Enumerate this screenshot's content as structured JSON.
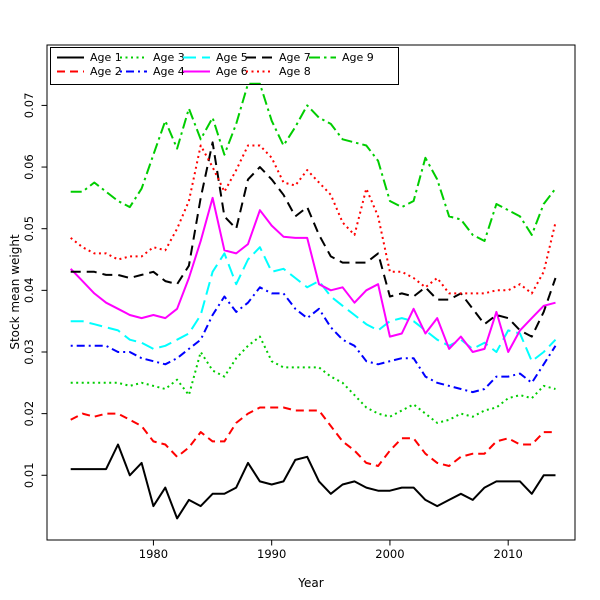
{
  "figure": {
    "background": "#ffffff",
    "axis_color": "#000000",
    "text_color": "#000000"
  },
  "chart_data": {
    "type": "line",
    "title": "",
    "xlabel": "Year",
    "ylabel": "Stock mean weight",
    "grid": false,
    "legend_position": "top-left-inside",
    "legend_columns": 5,
    "legend_border": true,
    "x_ticks": [
      1980,
      1990,
      2000,
      2010
    ],
    "y_ticks": [
      0.01,
      0.02,
      0.03,
      0.04,
      0.05,
      0.06,
      0.07
    ],
    "xlim": [
      1971.0,
      2015.65
    ],
    "ylim": [
      -0.0005,
      0.0798
    ],
    "x": [
      1973,
      1974,
      1975,
      1976,
      1977,
      1978,
      1979,
      1980,
      1981,
      1982,
      1983,
      1984,
      1985,
      1986,
      1987,
      1988,
      1989,
      1990,
      1991,
      1992,
      1993,
      1994,
      1995,
      1996,
      1997,
      1998,
      1999,
      2000,
      2001,
      2002,
      2003,
      2004,
      2005,
      2006,
      2007,
      2008,
      2009,
      2010,
      2011,
      2012,
      2013,
      2014
    ],
    "series": [
      {
        "name": "Age 1",
        "color": "#000000",
        "style": "solid",
        "values": [
          0.011,
          0.011,
          0.011,
          0.011,
          0.015,
          0.01,
          0.012,
          0.005,
          0.008,
          0.003,
          0.006,
          0.005,
          0.007,
          0.007,
          0.008,
          0.012,
          0.009,
          0.0085,
          0.009,
          0.0125,
          0.013,
          0.009,
          0.007,
          0.0085,
          0.009,
          0.008,
          0.0075,
          0.0075,
          0.008,
          0.008,
          0.006,
          0.005,
          0.006,
          0.007,
          0.006,
          0.008,
          0.009,
          0.009,
          0.009,
          0.007,
          0.01,
          0.01
        ]
      },
      {
        "name": "Age 2",
        "color": "#ff0000",
        "style": "dashed",
        "values": [
          0.019,
          0.02,
          0.0195,
          0.02,
          0.02,
          0.019,
          0.018,
          0.0155,
          0.015,
          0.013,
          0.0145,
          0.017,
          0.0155,
          0.0155,
          0.0185,
          0.02,
          0.021,
          0.021,
          0.021,
          0.0205,
          0.0205,
          0.0205,
          0.018,
          0.0155,
          0.014,
          0.012,
          0.0115,
          0.014,
          0.016,
          0.016,
          0.0135,
          0.012,
          0.0115,
          0.013,
          0.0135,
          0.0135,
          0.0155,
          0.016,
          0.015,
          0.015,
          0.017,
          0.017
        ]
      },
      {
        "name": "Age 3",
        "color": "#00cd00",
        "style": "dotted",
        "values": [
          0.025,
          0.025,
          0.025,
          0.025,
          0.025,
          0.0245,
          0.025,
          0.0245,
          0.024,
          0.0255,
          0.023,
          0.03,
          0.027,
          0.026,
          0.029,
          0.031,
          0.0325,
          0.0285,
          0.0275,
          0.0275,
          0.0275,
          0.0275,
          0.026,
          0.025,
          0.023,
          0.021,
          0.02,
          0.0195,
          0.0205,
          0.0215,
          0.02,
          0.0185,
          0.019,
          0.02,
          0.0195,
          0.0205,
          0.021,
          0.0225,
          0.023,
          0.0225,
          0.0245,
          0.024
        ]
      },
      {
        "name": "Age 4",
        "color": "#0000ff",
        "style": "dashdot",
        "values": [
          0.031,
          0.031,
          0.031,
          0.031,
          0.03,
          0.03,
          0.029,
          0.0285,
          0.028,
          0.029,
          0.0305,
          0.032,
          0.036,
          0.039,
          0.0365,
          0.038,
          0.0405,
          0.0395,
          0.0395,
          0.037,
          0.0355,
          0.037,
          0.034,
          0.032,
          0.031,
          0.0285,
          0.028,
          0.0285,
          0.029,
          0.029,
          0.026,
          0.025,
          0.0245,
          0.024,
          0.0235,
          0.024,
          0.026,
          0.026,
          0.0265,
          0.025,
          0.028,
          0.031
        ]
      },
      {
        "name": "Age 5",
        "color": "#00ffff",
        "style": "longdash",
        "values": [
          0.035,
          0.035,
          0.0345,
          0.034,
          0.0335,
          0.032,
          0.0315,
          0.0305,
          0.031,
          0.032,
          0.033,
          0.036,
          0.043,
          0.046,
          0.041,
          0.045,
          0.047,
          0.043,
          0.0435,
          0.042,
          0.0405,
          0.0415,
          0.039,
          0.0375,
          0.036,
          0.0345,
          0.0335,
          0.035,
          0.0355,
          0.035,
          0.0335,
          0.032,
          0.031,
          0.032,
          0.0305,
          0.0315,
          0.03,
          0.0335,
          0.033,
          0.0285,
          0.03,
          0.032
        ]
      },
      {
        "name": "Age 6",
        "color": "#ff00ff",
        "style": "solid",
        "values": [
          0.0435,
          0.0415,
          0.0395,
          0.038,
          0.037,
          0.036,
          0.0355,
          0.036,
          0.0355,
          0.037,
          0.042,
          0.048,
          0.055,
          0.0465,
          0.046,
          0.0475,
          0.053,
          0.0505,
          0.0487,
          0.0485,
          0.0485,
          0.041,
          0.04,
          0.0405,
          0.038,
          0.04,
          0.041,
          0.0325,
          0.033,
          0.037,
          0.033,
          0.0355,
          0.0305,
          0.0325,
          0.03,
          0.0305,
          0.0365,
          0.03,
          0.0335,
          0.0355,
          0.0375,
          0.038
        ]
      },
      {
        "name": "Age 7",
        "color": "#000000",
        "style": "meddash",
        "values": [
          0.043,
          0.043,
          0.043,
          0.0425,
          0.0425,
          0.042,
          0.0425,
          0.043,
          0.0415,
          0.041,
          0.044,
          0.055,
          0.064,
          0.052,
          0.05,
          0.058,
          0.06,
          0.058,
          0.0555,
          0.052,
          0.0535,
          0.049,
          0.0455,
          0.0445,
          0.0445,
          0.0445,
          0.046,
          0.039,
          0.0395,
          0.039,
          0.0405,
          0.0385,
          0.0385,
          0.0395,
          0.037,
          0.0345,
          0.036,
          0.0355,
          0.0335,
          0.0325,
          0.0365,
          0.042
        ]
      },
      {
        "name": "Age 8",
        "color": "#ff0000",
        "style": "dotted",
        "values": [
          0.0485,
          0.047,
          0.046,
          0.046,
          0.045,
          0.0455,
          0.0455,
          0.047,
          0.0465,
          0.05,
          0.0545,
          0.0635,
          0.06,
          0.056,
          0.0595,
          0.0635,
          0.0635,
          0.0615,
          0.0575,
          0.057,
          0.0595,
          0.0575,
          0.0555,
          0.051,
          0.049,
          0.0565,
          0.052,
          0.043,
          0.043,
          0.042,
          0.0405,
          0.042,
          0.0395,
          0.0395,
          0.0395,
          0.0395,
          0.04,
          0.04,
          0.041,
          0.0395,
          0.043,
          0.051
        ]
      },
      {
        "name": "Age 9",
        "color": "#00cd00",
        "style": "longdashdot",
        "values": [
          0.056,
          0.056,
          0.0575,
          0.056,
          0.0545,
          0.0535,
          0.0565,
          0.062,
          0.0675,
          0.063,
          0.0695,
          0.0645,
          0.068,
          0.062,
          0.067,
          0.0735,
          0.0735,
          0.0675,
          0.0635,
          0.0665,
          0.07,
          0.068,
          0.067,
          0.0645,
          0.064,
          0.0635,
          0.061,
          0.0545,
          0.0535,
          0.0545,
          0.0615,
          0.058,
          0.052,
          0.0515,
          0.049,
          0.048,
          0.054,
          0.053,
          0.052,
          0.049,
          0.054,
          0.0565
        ]
      }
    ]
  }
}
